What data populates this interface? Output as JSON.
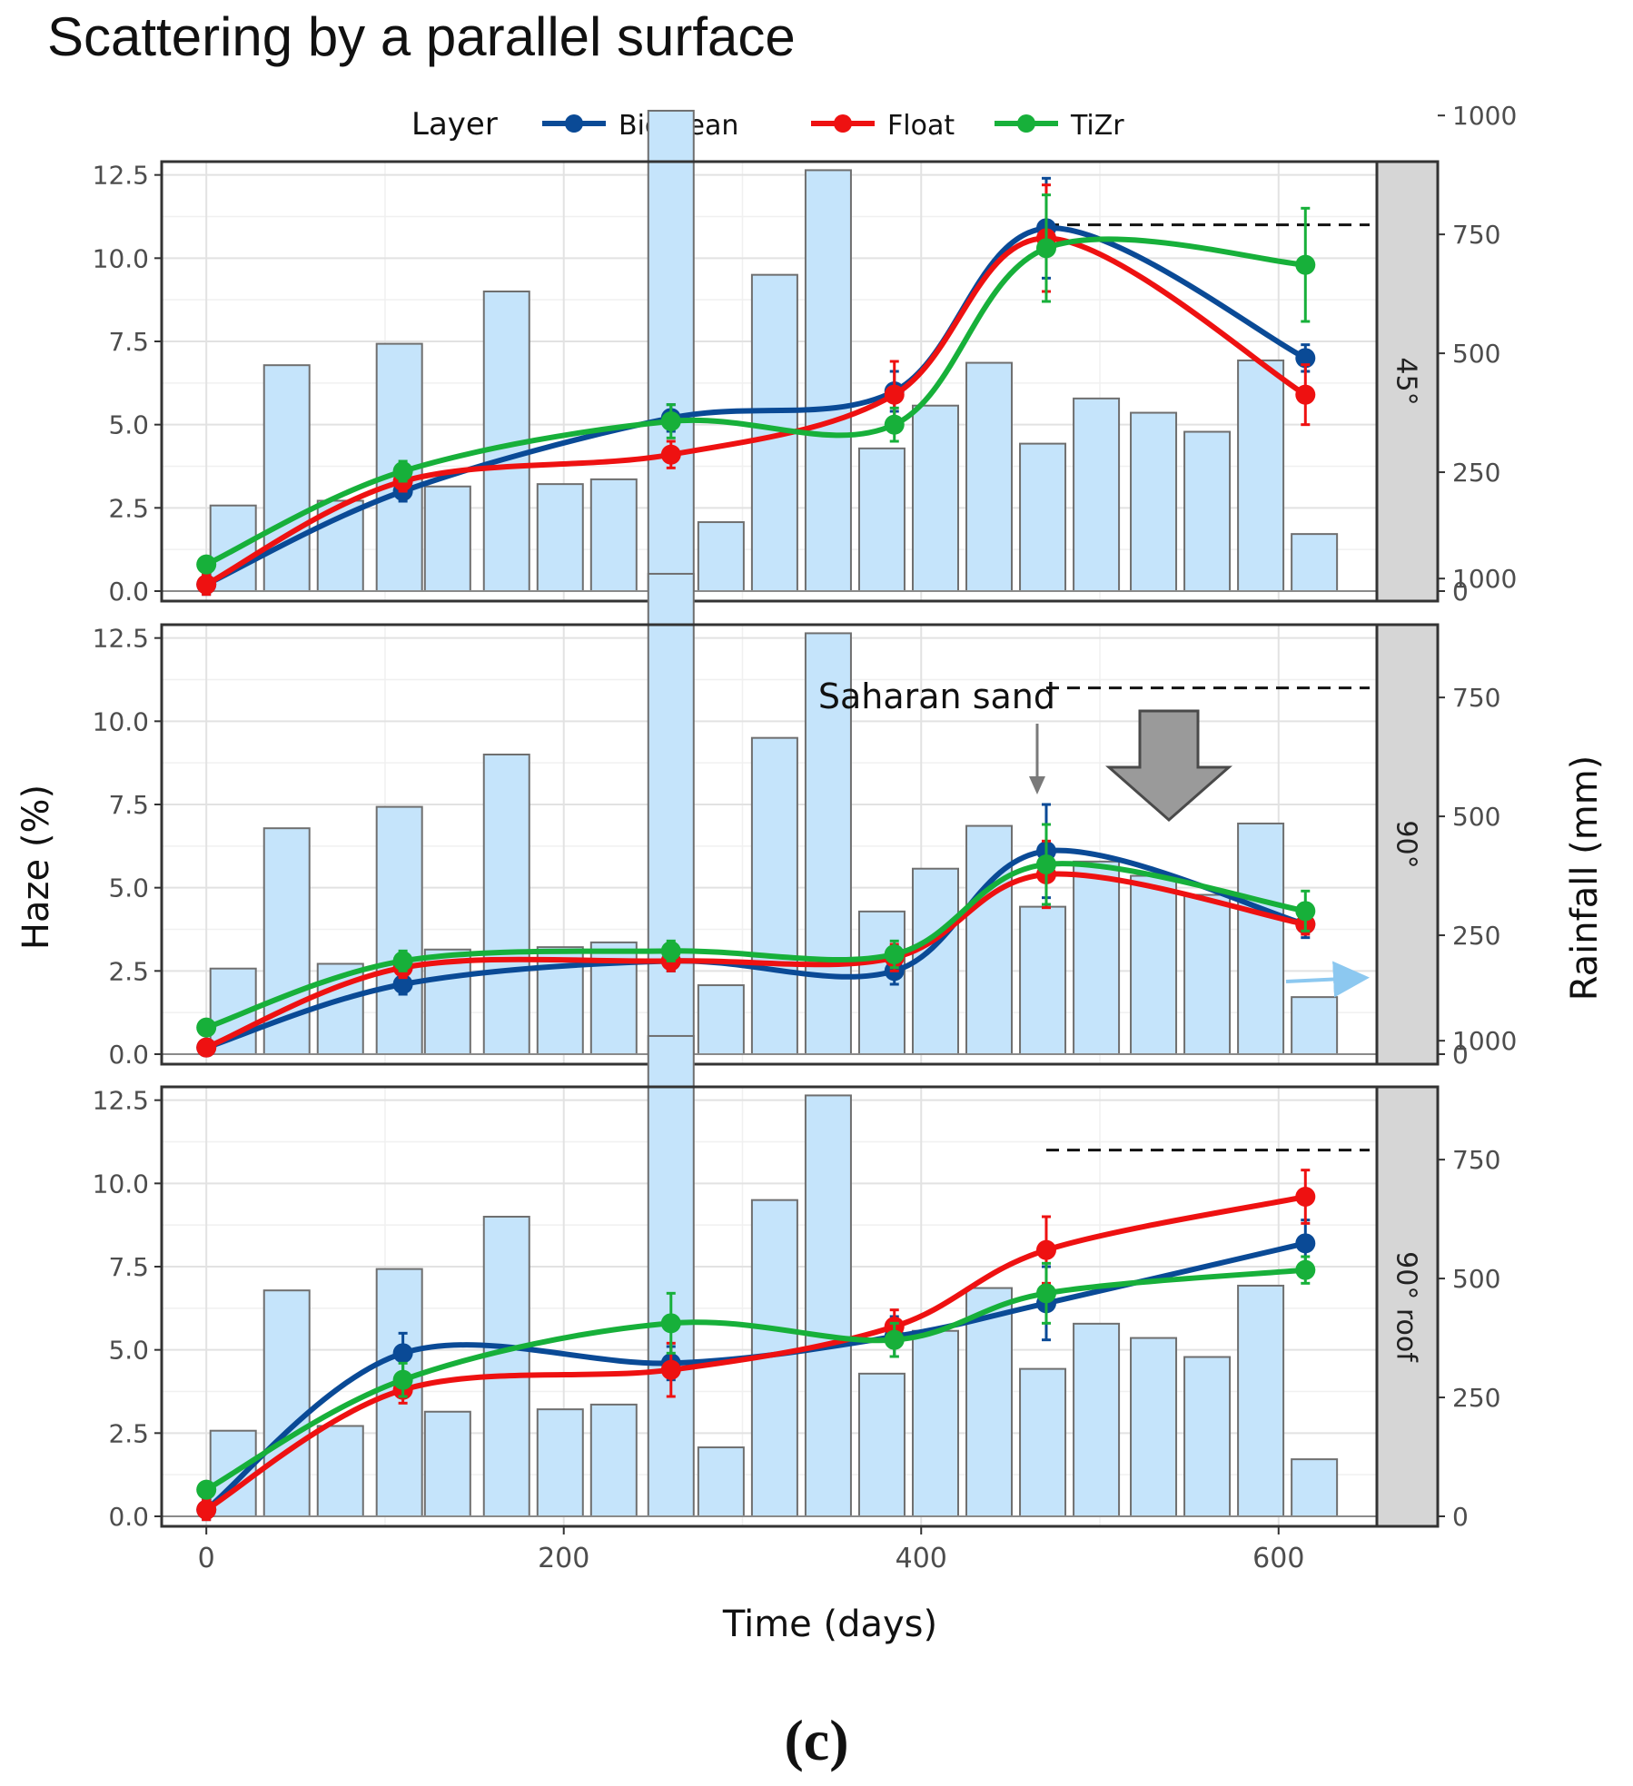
{
  "title": "Scattering by a parallel surface",
  "caption": "(c)",
  "chart_data": {
    "type": "line",
    "xlabel": "Time (days)",
    "ylabel_left": "Haze (%)",
    "ylabel_right": "Rainfall (mm)",
    "xlim": [
      -25,
      655
    ],
    "ylim_left": [
      -0.3,
      12.9
    ],
    "ylim_right": [
      -21,
      903
    ],
    "x_ticks": [
      0,
      200,
      400,
      600
    ],
    "y_ticks_left": [
      "0.0",
      "2.5",
      "5.0",
      "7.5",
      "10.0",
      "12.5"
    ],
    "y_ticks_right": [
      0,
      250,
      500,
      750,
      1000
    ],
    "legend": {
      "title": "Layer",
      "position": "top",
      "entries": [
        "BioClean",
        "Float",
        "TiZr"
      ]
    },
    "colors": {
      "BioClean": "#0a4a96",
      "Float": "#ee1111",
      "TiZr": "#17b03a",
      "bars": "#c5e4fb",
      "bar_edge": "#6f6f6f",
      "strip": "#d6d6d6"
    },
    "grid": true,
    "x_points": [
      0,
      110,
      260,
      385,
      470,
      615
    ],
    "rainfall": {
      "x": [
        15,
        45,
        75,
        108,
        135,
        168,
        198,
        228,
        260,
        288,
        318,
        348,
        378,
        408,
        438,
        468,
        498,
        530,
        560,
        590,
        620
      ],
      "values": [
        180,
        475,
        190,
        520,
        220,
        630,
        225,
        235,
        1010,
        145,
        665,
        885,
        300,
        390,
        480,
        310,
        405,
        375,
        335,
        485,
        120
      ]
    },
    "reference_line": 11.0,
    "panels": [
      {
        "strip": "45°",
        "series": [
          {
            "name": "BioClean",
            "values": [
              0.2,
              3.0,
              5.2,
              6.0,
              10.9,
              7.0
            ],
            "err": [
              0.3,
              0.3,
              0.4,
              0.6,
              1.5,
              0.4
            ]
          },
          {
            "name": "Float",
            "values": [
              0.2,
              3.3,
              4.1,
              5.9,
              10.6,
              5.9
            ],
            "err": [
              0.3,
              0.3,
              0.4,
              1.0,
              1.6,
              0.9
            ]
          },
          {
            "name": "TiZr",
            "values": [
              0.8,
              3.6,
              5.1,
              5.0,
              10.3,
              9.8
            ],
            "err": [
              0.2,
              0.3,
              0.5,
              0.5,
              1.6,
              1.7
            ]
          }
        ],
        "annotations": []
      },
      {
        "strip": "90°",
        "series": [
          {
            "name": "BioClean",
            "values": [
              0.2,
              2.1,
              2.8,
              2.5,
              6.1,
              3.9
            ],
            "err": [
              0.2,
              0.3,
              0.3,
              0.4,
              1.4,
              0.4
            ]
          },
          {
            "name": "Float",
            "values": [
              0.2,
              2.6,
              2.8,
              2.9,
              5.4,
              3.9
            ],
            "err": [
              0.2,
              0.3,
              0.3,
              0.4,
              1.0,
              0.3
            ]
          },
          {
            "name": "TiZr",
            "values": [
              0.8,
              2.8,
              3.1,
              3.0,
              5.7,
              4.3
            ],
            "err": [
              0.2,
              0.3,
              0.3,
              0.4,
              1.2,
              0.6
            ]
          }
        ],
        "annotations": [
          {
            "text": "Saharan sand",
            "x": 470
          }
        ]
      },
      {
        "strip": "90° roof",
        "series": [
          {
            "name": "BioClean",
            "values": [
              0.2,
              4.9,
              4.6,
              5.4,
              6.4,
              8.2
            ],
            "err": [
              0.3,
              0.6,
              0.5,
              0.6,
              1.1,
              0.7
            ]
          },
          {
            "name": "Float",
            "values": [
              0.2,
              3.8,
              4.4,
              5.7,
              8.0,
              9.6
            ],
            "err": [
              0.3,
              0.4,
              0.8,
              0.5,
              1.0,
              0.8
            ]
          },
          {
            "name": "TiZr",
            "values": [
              0.8,
              4.1,
              5.8,
              5.3,
              6.7,
              7.4
            ],
            "err": [
              0.2,
              0.5,
              0.9,
              0.5,
              0.9,
              0.4
            ]
          }
        ],
        "annotations": []
      }
    ]
  }
}
